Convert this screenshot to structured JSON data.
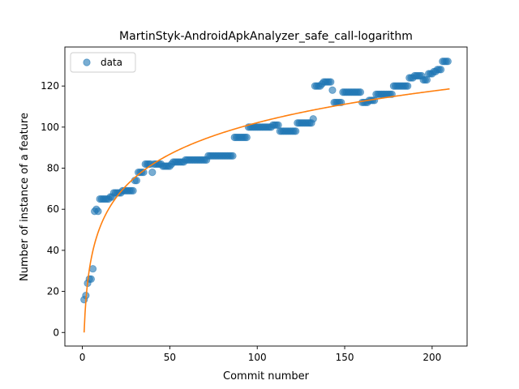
{
  "chart_data": {
    "type": "scatter",
    "title": "MartinStyk-AndroidApkAnalyzer_safe_call-logarithm",
    "xlabel": "Commit number",
    "ylabel": "Number of instance of a feature",
    "xlim": [
      -10,
      220
    ],
    "ylim": [
      -6.6,
      139
    ],
    "xticks": [
      0,
      50,
      100,
      150,
      200
    ],
    "yticks": [
      0,
      20,
      40,
      60,
      80,
      100,
      120
    ],
    "grid": false,
    "legend": {
      "position": "top-left",
      "entries": [
        "data"
      ]
    },
    "colors": {
      "data": "#1f77b4",
      "fit": "#ff7f0e"
    },
    "series": [
      {
        "name": "data",
        "kind": "scatter",
        "points": [
          [
            1,
            16
          ],
          [
            2,
            18
          ],
          [
            3,
            24
          ],
          [
            4,
            26
          ],
          [
            5,
            26
          ],
          [
            6,
            31
          ],
          [
            7,
            59
          ],
          [
            8,
            60
          ],
          [
            9,
            59
          ],
          [
            10,
            65
          ],
          [
            11,
            65
          ],
          [
            12,
            65
          ],
          [
            13,
            65
          ],
          [
            14,
            65
          ],
          [
            15,
            65
          ],
          [
            16,
            66
          ],
          [
            17,
            66
          ],
          [
            18,
            68
          ],
          [
            19,
            68
          ],
          [
            20,
            68
          ],
          [
            21,
            68
          ],
          [
            22,
            68
          ],
          [
            23,
            69
          ],
          [
            24,
            69
          ],
          [
            25,
            69
          ],
          [
            26,
            69
          ],
          [
            27,
            69
          ],
          [
            28,
            69
          ],
          [
            29,
            69
          ],
          [
            30,
            74
          ],
          [
            31,
            74
          ],
          [
            32,
            78
          ],
          [
            33,
            78
          ],
          [
            34,
            78
          ],
          [
            35,
            78
          ],
          [
            36,
            82
          ],
          [
            37,
            82
          ],
          [
            38,
            82
          ],
          [
            39,
            82
          ],
          [
            40,
            78
          ],
          [
            41,
            82
          ],
          [
            42,
            82
          ],
          [
            43,
            82
          ],
          [
            44,
            82
          ],
          [
            45,
            82
          ],
          [
            46,
            81
          ],
          [
            47,
            81
          ],
          [
            48,
            81
          ],
          [
            49,
            81
          ],
          [
            50,
            81
          ],
          [
            51,
            82
          ],
          [
            52,
            83
          ],
          [
            53,
            83
          ],
          [
            54,
            83
          ],
          [
            55,
            83
          ],
          [
            56,
            83
          ],
          [
            57,
            83
          ],
          [
            58,
            83
          ],
          [
            59,
            84
          ],
          [
            60,
            84
          ],
          [
            61,
            84
          ],
          [
            62,
            84
          ],
          [
            63,
            84
          ],
          [
            64,
            84
          ],
          [
            65,
            84
          ],
          [
            66,
            84
          ],
          [
            67,
            84
          ],
          [
            68,
            84
          ],
          [
            69,
            84
          ],
          [
            70,
            84
          ],
          [
            71,
            84
          ],
          [
            72,
            86
          ],
          [
            73,
            86
          ],
          [
            74,
            86
          ],
          [
            75,
            86
          ],
          [
            76,
            86
          ],
          [
            77,
            86
          ],
          [
            78,
            86
          ],
          [
            79,
            86
          ],
          [
            80,
            86
          ],
          [
            81,
            86
          ],
          [
            82,
            86
          ],
          [
            83,
            86
          ],
          [
            84,
            86
          ],
          [
            85,
            86
          ],
          [
            86,
            86
          ],
          [
            87,
            95
          ],
          [
            88,
            95
          ],
          [
            89,
            95
          ],
          [
            90,
            95
          ],
          [
            91,
            95
          ],
          [
            92,
            95
          ],
          [
            93,
            95
          ],
          [
            94,
            95
          ],
          [
            95,
            100
          ],
          [
            96,
            100
          ],
          [
            97,
            100
          ],
          [
            98,
            100
          ],
          [
            99,
            100
          ],
          [
            100,
            100
          ],
          [
            101,
            100
          ],
          [
            102,
            100
          ],
          [
            103,
            100
          ],
          [
            104,
            100
          ],
          [
            105,
            100
          ],
          [
            106,
            100
          ],
          [
            107,
            100
          ],
          [
            108,
            100
          ],
          [
            109,
            101
          ],
          [
            110,
            101
          ],
          [
            111,
            101
          ],
          [
            112,
            101
          ],
          [
            113,
            98
          ],
          [
            114,
            98
          ],
          [
            115,
            98
          ],
          [
            116,
            98
          ],
          [
            117,
            98
          ],
          [
            118,
            98
          ],
          [
            119,
            98
          ],
          [
            120,
            98
          ],
          [
            121,
            98
          ],
          [
            122,
            98
          ],
          [
            123,
            102
          ],
          [
            124,
            102
          ],
          [
            125,
            102
          ],
          [
            126,
            102
          ],
          [
            127,
            102
          ],
          [
            128,
            102
          ],
          [
            129,
            102
          ],
          [
            130,
            102
          ],
          [
            131,
            102
          ],
          [
            132,
            104
          ],
          [
            133,
            120
          ],
          [
            134,
            120
          ],
          [
            135,
            120
          ],
          [
            136,
            120
          ],
          [
            137,
            121
          ],
          [
            138,
            122
          ],
          [
            139,
            122
          ],
          [
            140,
            122
          ],
          [
            141,
            122
          ],
          [
            142,
            122
          ],
          [
            143,
            118
          ],
          [
            144,
            112
          ],
          [
            145,
            112
          ],
          [
            146,
            112
          ],
          [
            147,
            112
          ],
          [
            148,
            112
          ],
          [
            149,
            117
          ],
          [
            150,
            117
          ],
          [
            151,
            117
          ],
          [
            152,
            117
          ],
          [
            153,
            117
          ],
          [
            154,
            117
          ],
          [
            155,
            117
          ],
          [
            156,
            117
          ],
          [
            157,
            117
          ],
          [
            158,
            117
          ],
          [
            159,
            117
          ],
          [
            160,
            112
          ],
          [
            161,
            112
          ],
          [
            162,
            112
          ],
          [
            163,
            112
          ],
          [
            164,
            113
          ],
          [
            165,
            113
          ],
          [
            166,
            113
          ],
          [
            167,
            113
          ],
          [
            168,
            116
          ],
          [
            169,
            116
          ],
          [
            170,
            116
          ],
          [
            171,
            116
          ],
          [
            172,
            116
          ],
          [
            173,
            116
          ],
          [
            174,
            116
          ],
          [
            175,
            116
          ],
          [
            176,
            116
          ],
          [
            177,
            116
          ],
          [
            178,
            120
          ],
          [
            179,
            120
          ],
          [
            180,
            120
          ],
          [
            181,
            120
          ],
          [
            182,
            120
          ],
          [
            183,
            120
          ],
          [
            184,
            120
          ],
          [
            185,
            120
          ],
          [
            186,
            120
          ],
          [
            187,
            124
          ],
          [
            188,
            124
          ],
          [
            189,
            124
          ],
          [
            190,
            125
          ],
          [
            191,
            125
          ],
          [
            192,
            125
          ],
          [
            193,
            125
          ],
          [
            194,
            125
          ],
          [
            195,
            123
          ],
          [
            196,
            123
          ],
          [
            197,
            123
          ],
          [
            198,
            126
          ],
          [
            199,
            126
          ],
          [
            200,
            126
          ],
          [
            201,
            127
          ],
          [
            202,
            127
          ],
          [
            203,
            128
          ],
          [
            204,
            128
          ],
          [
            205,
            128
          ],
          [
            206,
            132
          ],
          [
            207,
            132
          ],
          [
            208,
            132
          ],
          [
            209,
            132
          ]
        ]
      },
      {
        "kind": "line",
        "curve": "logarithmic",
        "x_range": [
          1,
          210
        ],
        "coefficients": {
          "a": 22.18,
          "b": 0.0
        }
      }
    ]
  }
}
